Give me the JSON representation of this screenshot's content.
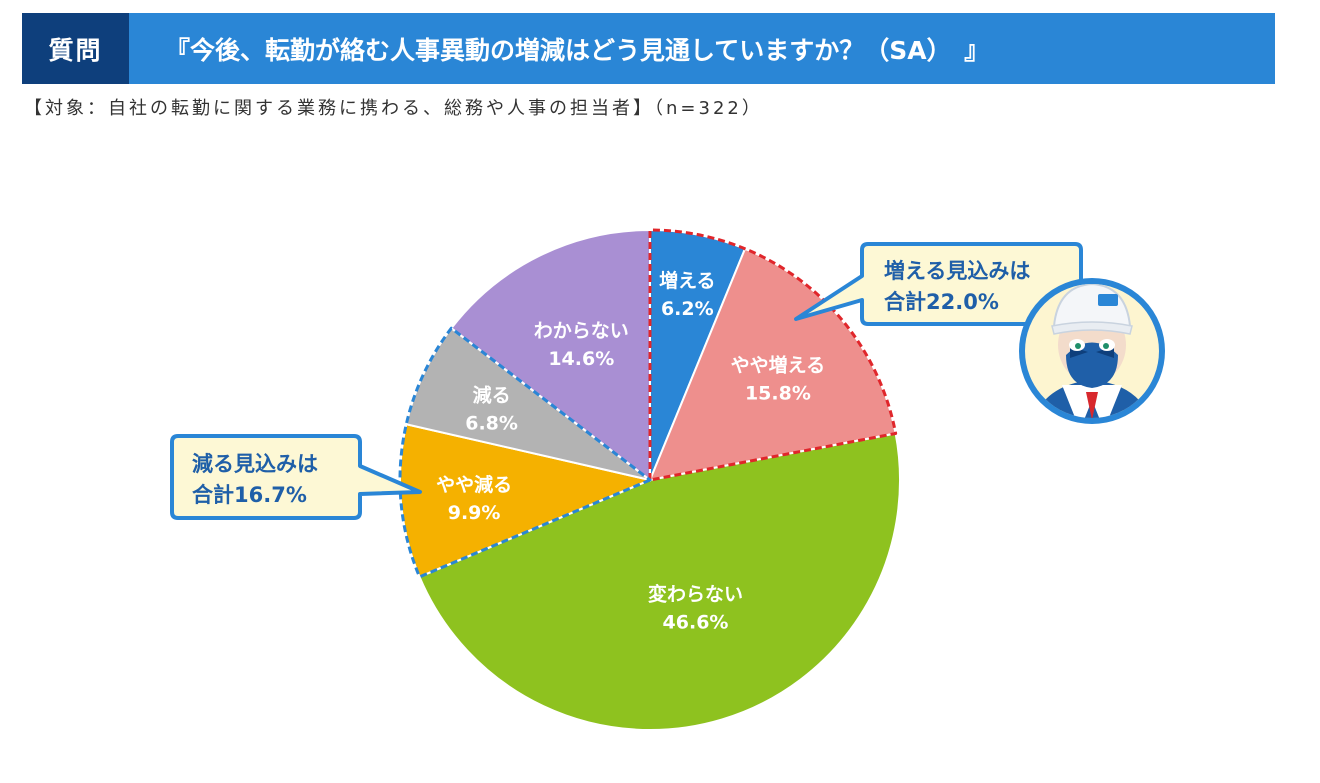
{
  "header": {
    "tag": "質問",
    "title": "『今後、転勤が絡む人事異動の増減はどう見通していますか？（SA）　』"
  },
  "subtitle": "【対象：自社の転勤に関する業務に携わる、総務や人事の担当者】（n=322）",
  "chart_data": {
    "type": "pie",
    "title": "",
    "start_angle_deg": 0,
    "direction": "clockwise",
    "categories": [
      "増える",
      "やや増える",
      "変わらない",
      "やや減る",
      "減る",
      "わからない"
    ],
    "values": [
      6.2,
      15.8,
      46.6,
      9.9,
      6.8,
      14.6
    ],
    "value_labels": [
      "6.2%",
      "15.8%",
      "46.6%",
      "9.9%",
      "6.8%",
      "14.6%"
    ],
    "colors": [
      "#2a86d6",
      "#ee8f8d",
      "#8ec21f",
      "#f5b100",
      "#b3b3b3",
      "#a98fd3"
    ],
    "groups": [
      {
        "members": [
          "増える",
          "やや増える"
        ],
        "outline_color": "#e0262b",
        "callout_line1": "増える見込みは",
        "callout_line2": "合計22.0%"
      },
      {
        "members": [
          "やや減る",
          "減る"
        ],
        "outline_color": "#2a86d6",
        "callout_line1": "減る見込みは",
        "callout_line2": "合計16.7%"
      }
    ]
  },
  "colors": {
    "header_blue": "#2a86d6",
    "header_navy": "#0e3f7c",
    "callout_fill": "#fdf8d5",
    "callout_border": "#2a86d6"
  },
  "mascot": {
    "icon": "mascot-character-icon"
  }
}
